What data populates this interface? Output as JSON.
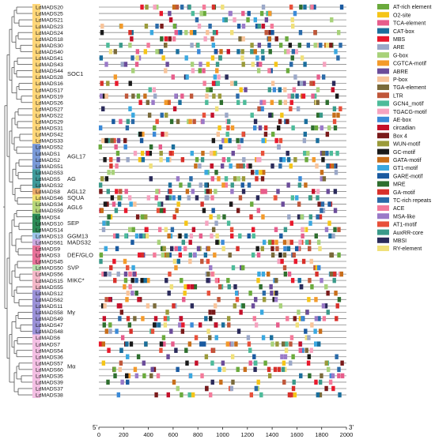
{
  "genes": [
    "LdMADS20",
    "LdMADS25",
    "LdMADS21",
    "LdMADS23",
    "LdMADS24",
    "LdMADS18",
    "LdMADS30",
    "LdMADS40",
    "LdMADS41",
    "LdMADS43",
    "LdMADS44",
    "LdMADS28",
    "LdMADS16",
    "LdMADS17",
    "LdMADS19",
    "LdMADS26",
    "LdMADS27",
    "LdMADS22",
    "LdMADS29",
    "LdMADS31",
    "LdMADS42",
    "LdMADS33",
    "LdMADS52",
    "LdMADS1",
    "LdMADS2",
    "LdMADS51",
    "LdMADS53",
    "LdMADS5",
    "LdMADS32",
    "LdMADS8",
    "LdMADS46",
    "LdMADS34",
    "LdMADS59",
    "LdMADS4",
    "LdMADS10",
    "LdMADS14",
    "LdMADS13",
    "LdMADS61",
    "LdMADS9",
    "LdMADS3",
    "LdMADS45",
    "LdMADS50",
    "LdMADS56",
    "LdMADS15",
    "LdMADS55",
    "LdMADS12",
    "LdMADS62",
    "LdMADS11",
    "LdMADS58",
    "LdMADS49",
    "LdMADS47",
    "LdMADS48",
    "LdMADS6",
    "LdMADS7",
    "LdMADS54",
    "LdMADS36",
    "LdMADS57",
    "LdMADS60",
    "LdMADS35",
    "LdMADS39",
    "LdMADS37",
    "LdMADS38"
  ],
  "subfamilies": [
    {
      "label": "SOC1",
      "from": 0,
      "to": 21,
      "color": "#ffd77a"
    },
    {
      "label": "AGL17",
      "from": 22,
      "to": 25,
      "color": "#7a9ad8"
    },
    {
      "label": "AG",
      "from": 26,
      "to": 28,
      "color": "#3f9a9a"
    },
    {
      "label": "AGL12",
      "from": 29,
      "to": 29,
      "color": "#e8a96a"
    },
    {
      "label": "SQUA",
      "from": 30,
      "to": 30,
      "color": "#f1e070"
    },
    {
      "label": "AGL6",
      "from": 31,
      "to": 32,
      "color": "#b7d67a"
    },
    {
      "label": "SEP",
      "from": 33,
      "to": 35,
      "color": "#2e8b57"
    },
    {
      "label": "GGM13",
      "from": 36,
      "to": 36,
      "color": "#9ec6ea"
    },
    {
      "label": "MADS32",
      "from": 37,
      "to": 37,
      "color": "#c9a9e0"
    },
    {
      "label": "DEF/GLO",
      "from": 38,
      "to": 40,
      "color": "#e8739a"
    },
    {
      "label": "SVP",
      "from": 41,
      "to": 41,
      "color": "#b6e0ae"
    },
    {
      "label": "MIKC*",
      "from": 42,
      "to": 44,
      "color": "#f4b8c8"
    },
    {
      "label": "Mγ",
      "from": 45,
      "to": 51,
      "color": "#9b92d8"
    },
    {
      "label": "Mα",
      "from": 52,
      "to": 61,
      "color": "#f4c0e4"
    }
  ],
  "legend": [
    {
      "name": "AT-rich element",
      "color": "#6aaa3c"
    },
    {
      "name": "O2-site",
      "color": "#f5c518"
    },
    {
      "name": "TCA-element",
      "color": "#e75d8c"
    },
    {
      "name": "CAT-box",
      "color": "#1a6e9c"
    },
    {
      "name": "MBS",
      "color": "#e8192c"
    },
    {
      "name": "ARE",
      "color": "#9ba8c8"
    },
    {
      "name": "G-box",
      "color": "#a8d27a"
    },
    {
      "name": "CGTCA-motif",
      "color": "#f39a2a"
    },
    {
      "name": "ABRE",
      "color": "#6b4c9a"
    },
    {
      "name": "P-box",
      "color": "#f8c49a"
    },
    {
      "name": "TGA-element",
      "color": "#7a6a3a"
    },
    {
      "name": "LTR",
      "color": "#c0573a"
    },
    {
      "name": "GCN4_motif",
      "color": "#4dbb9a"
    },
    {
      "name": "TGACG-motif",
      "color": "#f6a3c0"
    },
    {
      "name": "AE-box",
      "color": "#3b8ad8"
    },
    {
      "name": "circadian",
      "color": "#c4102a"
    },
    {
      "name": "Box 4",
      "color": "#7a1a1a"
    },
    {
      "name": "WUN-motif",
      "color": "#9a9a3a"
    },
    {
      "name": "GC-motif",
      "color": "#1a1a1a"
    },
    {
      "name": "GATA-motif",
      "color": "#c86e1a"
    },
    {
      "name": "GT1-motif",
      "color": "#3aa8e0"
    },
    {
      "name": "GARE-motif",
      "color": "#1a5aa0"
    },
    {
      "name": "MRE",
      "color": "#2e6e2e"
    },
    {
      "name": "GA-motif",
      "color": "#d8302a"
    },
    {
      "name": "TC-rich repeats",
      "color": "#2a6aa8"
    },
    {
      "name": "ACE",
      "color": "#f47a9a"
    },
    {
      "name": "MSA-like",
      "color": "#9a7ac8"
    },
    {
      "name": "AT1-motif",
      "color": "#e8503a"
    },
    {
      "name": "AuxRR-core",
      "color": "#3a9a8a"
    },
    {
      "name": "MBSI",
      "color": "#2a2a5a"
    },
    {
      "name": "RY-element",
      "color": "#f0e07a"
    }
  ],
  "axis": {
    "ticks": [
      0,
      200,
      400,
      600,
      800,
      1000,
      1200,
      1400,
      1600,
      1800,
      2000
    ],
    "start_label": "5'",
    "end_label": "3'",
    "max": 2000
  }
}
